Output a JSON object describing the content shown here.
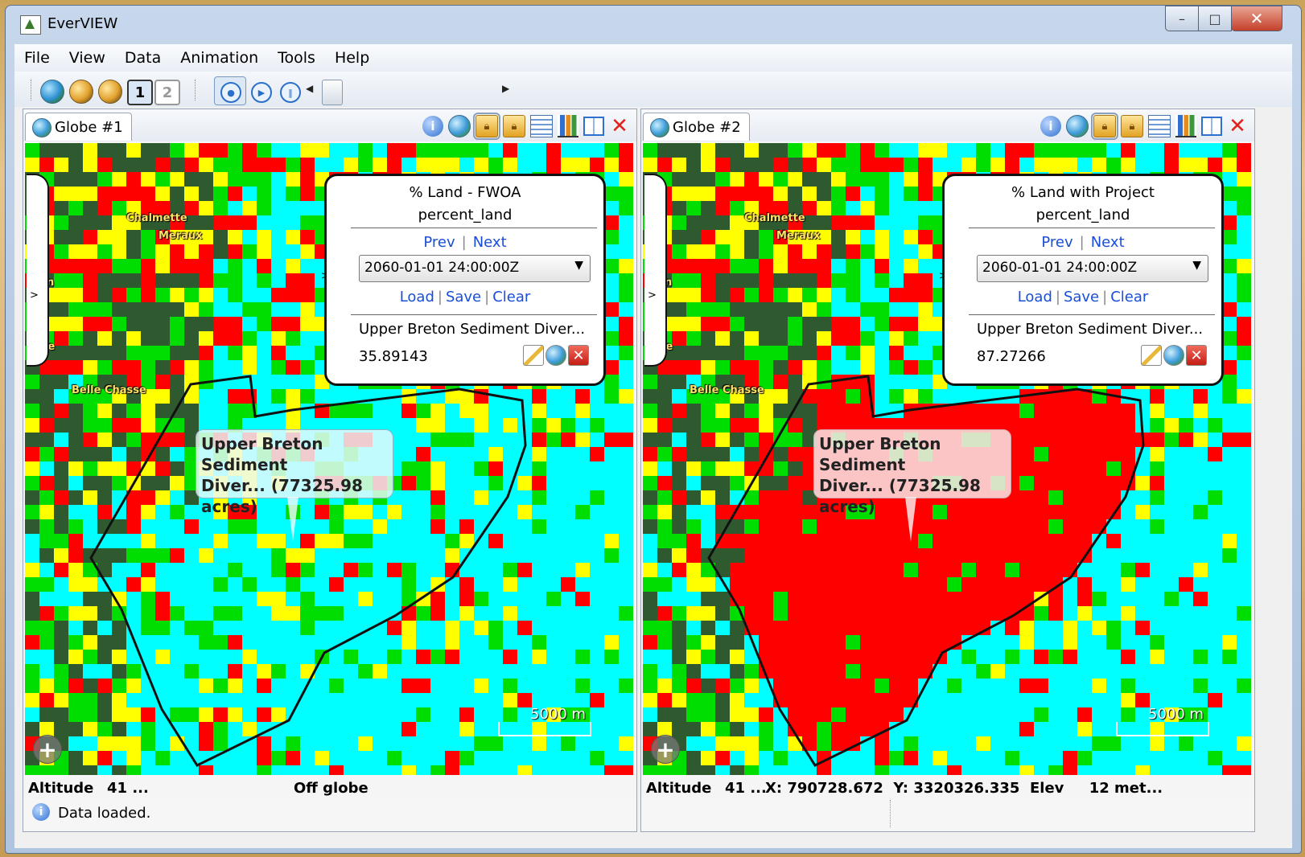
{
  "window": {
    "title": "EverVIEW"
  },
  "menu": [
    "File",
    "View",
    "Data",
    "Animation",
    "Tools",
    "Help"
  ],
  "panels": [
    {
      "tab": "Globe #1",
      "info": {
        "title": "% Land - FWOA",
        "variable": "percent_land",
        "prev": "Prev",
        "next": "Next",
        "time": "2060-01-01 24:00:00Z",
        "load": "Load",
        "save": "Save",
        "clear": "Clear",
        "feature": "Upper Breton Sediment Diver...",
        "value": "35.89143"
      },
      "callout": [
        "Upper Breton Sediment",
        "Diver... (77325.98",
        "acres)"
      ],
      "places": [
        "Chalmette",
        "Meraux",
        "own",
        "lane",
        "Belle Chasse"
      ],
      "scale": "5000 m",
      "status": {
        "altitude_label": "Altitude",
        "altitude": "41 ...",
        "coords": "Off globe"
      }
    },
    {
      "tab": "Globe #2",
      "info": {
        "title": "% Land with Project",
        "variable": "percent_land",
        "prev": "Prev",
        "next": "Next",
        "time": "2060-01-01 24:00:00Z",
        "load": "Load",
        "save": "Save",
        "clear": "Clear",
        "feature": "Upper Breton Sediment Diver...",
        "value": "87.27266"
      },
      "callout": [
        "Upper Breton Sediment",
        "Diver... (77325.98",
        "acres)"
      ],
      "places": [
        "Chalmette",
        "Meraux",
        "own",
        "lane",
        "Belle Chasse"
      ],
      "scale": "5000 m",
      "status": {
        "altitude_label": "Altitude",
        "altitude": "41 ...",
        "coords": "X: 790728.672  Y: 3320326.335  Elev     12 met..."
      }
    }
  ],
  "status": {
    "message": "Data loaded."
  },
  "colors": {
    "land_high": "#ff0000",
    "land_mid": "#ffff00",
    "land_low": "#00dd00",
    "water": "#00ffff",
    "imagery": "#2f5a2f"
  },
  "icons": {
    "toolbar": [
      "globe-icon",
      "globe-layer-icon",
      "globe-layer-add-icon",
      "single-view-icon",
      "dual-view-icon",
      "record-icon",
      "play-icon",
      "pause-icon"
    ],
    "panel_tools": [
      "info-icon",
      "globe-icon",
      "lock-icon",
      "lock-icon",
      "table-icon",
      "chart-icon",
      "split-view-icon",
      "close-icon"
    ]
  }
}
